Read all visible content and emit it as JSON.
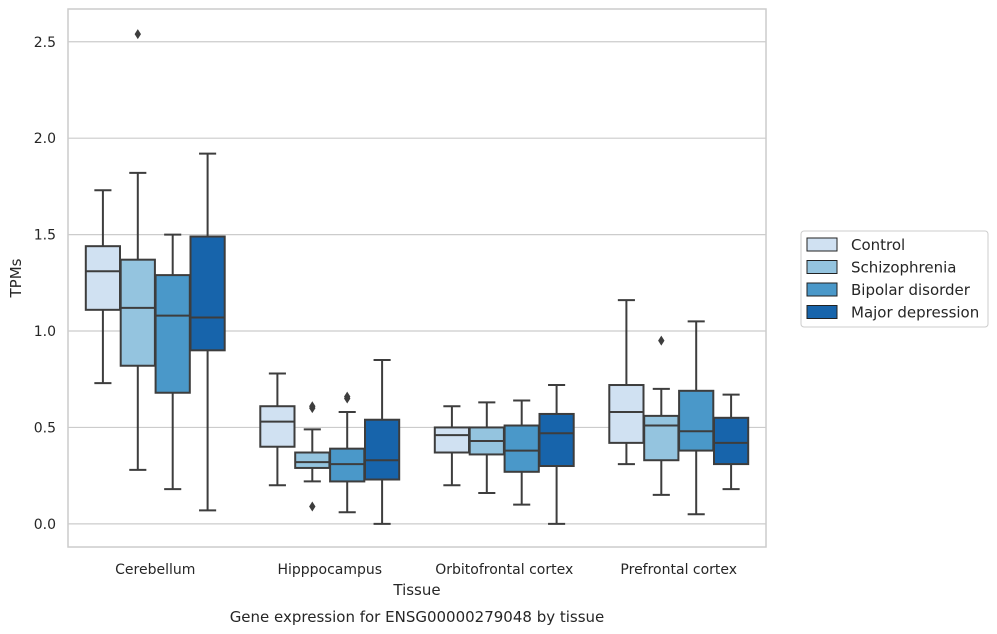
{
  "chart_data": {
    "type": "box",
    "xlabel": "Tissue",
    "ylabel": "TPMs",
    "caption": "Gene expression for ENSG00000279048 by tissue",
    "ylim": [
      -0.12,
      2.67
    ],
    "yticks": [
      "0.0",
      "0.5",
      "1.0",
      "1.5",
      "2.0",
      "2.5"
    ],
    "ytick_values": [
      0.0,
      0.5,
      1.0,
      1.5,
      2.0,
      2.5
    ],
    "grid": true,
    "legend_position": "right",
    "categories": [
      "Cerebellum",
      "Hipppocampus",
      "Orbitofrontal cortex",
      "Prefrontal cortex"
    ],
    "series": [
      {
        "name": "Control",
        "color": "#d0e1f2",
        "boxes": [
          {
            "whislo": 0.73,
            "q1": 1.11,
            "med": 1.31,
            "q3": 1.44,
            "whishi": 1.73,
            "fliers": []
          },
          {
            "whislo": 0.2,
            "q1": 0.4,
            "med": 0.53,
            "q3": 0.61,
            "whishi": 0.78,
            "fliers": []
          },
          {
            "whislo": 0.2,
            "q1": 0.37,
            "med": 0.46,
            "q3": 0.5,
            "whishi": 0.61,
            "fliers": []
          },
          {
            "whislo": 0.31,
            "q1": 0.42,
            "med": 0.58,
            "q3": 0.72,
            "whishi": 1.16,
            "fliers": []
          }
        ]
      },
      {
        "name": "Schizophrenia",
        "color": "#94c4df",
        "boxes": [
          {
            "whislo": 0.28,
            "q1": 0.82,
            "med": 1.12,
            "q3": 1.37,
            "whishi": 1.82,
            "fliers": [
              2.54
            ]
          },
          {
            "whislo": 0.22,
            "q1": 0.29,
            "med": 0.32,
            "q3": 0.37,
            "whishi": 0.49,
            "fliers": [
              0.09,
              0.6,
              0.61
            ]
          },
          {
            "whislo": 0.16,
            "q1": 0.36,
            "med": 0.43,
            "q3": 0.5,
            "whishi": 0.63,
            "fliers": []
          },
          {
            "whislo": 0.15,
            "q1": 0.33,
            "med": 0.51,
            "q3": 0.56,
            "whishi": 0.7,
            "fliers": [
              0.95
            ]
          }
        ]
      },
      {
        "name": "Bipolar disorder",
        "color": "#4a98c9",
        "boxes": [
          {
            "whislo": 0.18,
            "q1": 0.68,
            "med": 1.08,
            "q3": 1.29,
            "whishi": 1.5,
            "fliers": []
          },
          {
            "whislo": 0.06,
            "q1": 0.22,
            "med": 0.31,
            "q3": 0.39,
            "whishi": 0.58,
            "fliers": [
              0.65,
              0.66
            ]
          },
          {
            "whislo": 0.1,
            "q1": 0.27,
            "med": 0.38,
            "q3": 0.51,
            "whishi": 0.64,
            "fliers": []
          },
          {
            "whislo": 0.05,
            "q1": 0.38,
            "med": 0.48,
            "q3": 0.69,
            "whishi": 1.05,
            "fliers": []
          }
        ]
      },
      {
        "name": "Major depression",
        "color": "#1764ab",
        "boxes": [
          {
            "whislo": 0.07,
            "q1": 0.9,
            "med": 1.07,
            "q3": 1.49,
            "whishi": 1.92,
            "fliers": []
          },
          {
            "whislo": 0.0,
            "q1": 0.23,
            "med": 0.33,
            "q3": 0.54,
            "whishi": 0.85,
            "fliers": []
          },
          {
            "whislo": 0.0,
            "q1": 0.3,
            "med": 0.47,
            "q3": 0.57,
            "whishi": 0.72,
            "fliers": []
          },
          {
            "whislo": 0.18,
            "q1": 0.31,
            "med": 0.42,
            "q3": 0.55,
            "whishi": 0.67,
            "fliers": []
          }
        ]
      }
    ]
  }
}
